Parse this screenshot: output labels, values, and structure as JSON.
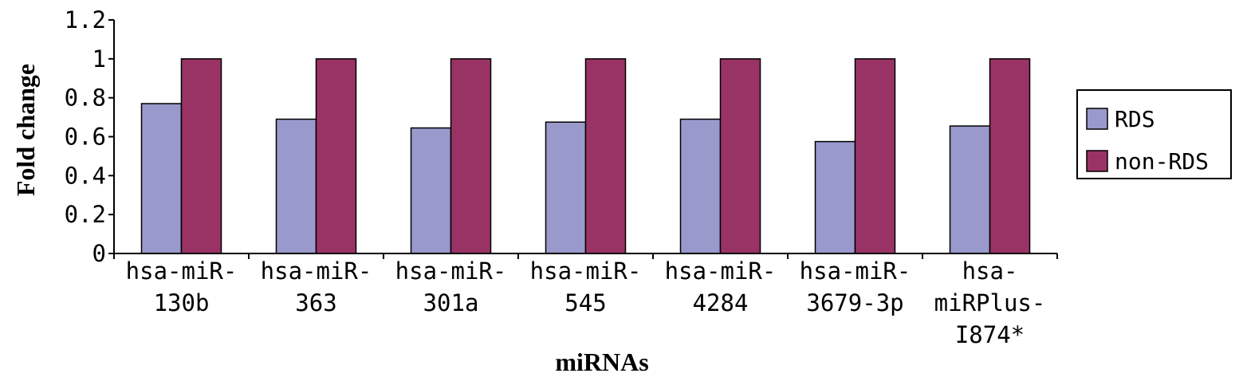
{
  "chart_data": {
    "type": "bar",
    "categories": [
      [
        "hsa-miR-",
        "130b"
      ],
      [
        "hsa-miR-",
        "363"
      ],
      [
        "hsa-miR-",
        "301a"
      ],
      [
        "hsa-miR-",
        "545"
      ],
      [
        "hsa-miR-",
        "4284"
      ],
      [
        "hsa-miR-",
        "3679-3p"
      ],
      [
        "hsa-",
        "miRPlus-",
        "I874*"
      ]
    ],
    "series": [
      {
        "name": "RDS",
        "color": "#9999cc",
        "values": [
          0.77,
          0.69,
          0.645,
          0.675,
          0.69,
          0.575,
          0.655
        ]
      },
      {
        "name": "non-RDS",
        "color": "#993366",
        "values": [
          1,
          1,
          1,
          1,
          1,
          1,
          1
        ]
      }
    ],
    "xlabel": "miRNAs",
    "ylabel": "Fold change",
    "ylim": [
      0,
      1.2
    ],
    "yticks": [
      0,
      0.2,
      0.4,
      0.6,
      0.8,
      1,
      1.2
    ],
    "ytick_labels": [
      "0",
      "0.2",
      "0.4",
      "0.6",
      "0.8",
      "1",
      "1.2"
    ],
    "grid": false,
    "legend_position": "right"
  }
}
